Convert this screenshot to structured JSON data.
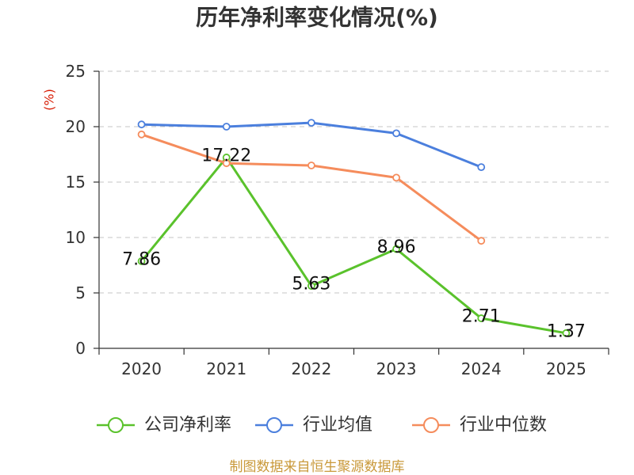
{
  "chart_data": {
    "type": "line",
    "title": "历年净利率变化情况(%)",
    "ylabel": "(%)",
    "xlabel": "",
    "categories": [
      "2020",
      "2021",
      "2022",
      "2023",
      "2024",
      "2025"
    ],
    "ylim": [
      0,
      25
    ],
    "yticks": [
      0,
      5,
      10,
      15,
      20,
      25
    ],
    "grid": true,
    "legend_position": "bottom",
    "series": [
      {
        "name": "公司净利率",
        "values": [
          7.86,
          17.22,
          5.63,
          8.96,
          2.71,
          1.37
        ],
        "color": "#5ac22c",
        "data_labels": true
      },
      {
        "name": "行业均值",
        "values": [
          20.2,
          20.0,
          20.35,
          19.4,
          16.35,
          null
        ],
        "color": "#4b7fdd",
        "data_labels": false
      },
      {
        "name": "行业中位数",
        "values": [
          19.3,
          16.7,
          16.5,
          15.4,
          9.7,
          null
        ],
        "color": "#f58c5c",
        "data_labels": false
      }
    ]
  },
  "ylabel_color": "#d81e06",
  "source_note": "制图数据来自恒生聚源数据库",
  "source_note_color": "#c9993a"
}
